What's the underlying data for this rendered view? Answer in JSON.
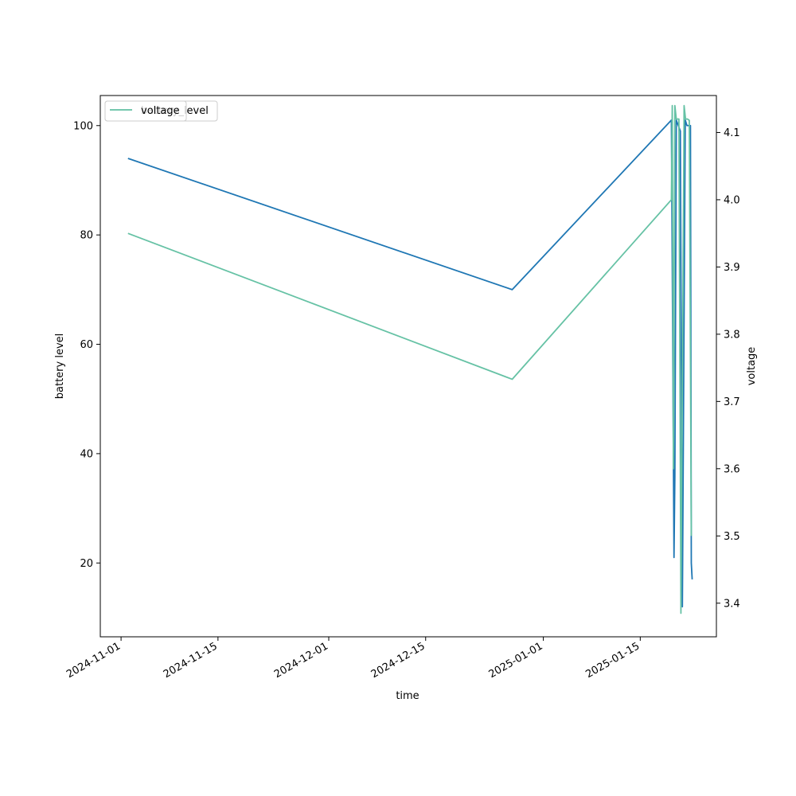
{
  "chart_data": {
    "type": "line",
    "title": "",
    "xlabel": "time",
    "ylabel_left": "battery level",
    "ylabel_right": "voltage",
    "x_ticks": [
      "2024-11-01",
      "2024-11-15",
      "2024-12-01",
      "2024-12-15",
      "2025-01-01",
      "2025-01-15"
    ],
    "y_left_ticks": [
      20,
      40,
      60,
      80,
      100
    ],
    "y_right_ticks": [
      3.4,
      3.5,
      3.6,
      3.7,
      3.8,
      3.9,
      4.0,
      4.1
    ],
    "xlim": [
      "2024-10-29",
      "2025-01-26"
    ],
    "ylim_left": [
      6.5,
      105.5
    ],
    "ylim_right": [
      3.35,
      4.155
    ],
    "grid": false,
    "legend_placement": "upper-left",
    "series": [
      {
        "name": "battery_level",
        "axis": "left",
        "color": "#1f77b4",
        "points": [
          [
            "2024-11-02T00:00",
            94
          ],
          [
            "2024-12-27T12:00",
            70
          ],
          [
            "2025-01-19T12:00",
            101
          ],
          [
            "2025-01-19T21:00",
            21
          ],
          [
            "2025-01-20T00:00",
            36
          ],
          [
            "2025-01-20T05:00",
            101
          ],
          [
            "2025-01-20T12:00",
            100
          ],
          [
            "2025-01-20T19:00",
            99
          ],
          [
            "2025-01-21T02:00",
            12
          ],
          [
            "2025-01-21T12:00",
            101
          ],
          [
            "2025-01-21T18:00",
            100
          ],
          [
            "2025-01-22T06:00",
            100
          ],
          [
            "2025-01-22T09:00",
            20
          ],
          [
            "2025-01-22T12:00",
            17
          ]
        ]
      },
      {
        "name": "voltage",
        "axis": "right",
        "color": "#66c2a5",
        "points": [
          [
            "2024-11-02T00:00",
            3.95
          ],
          [
            "2024-12-27T12:00",
            3.733
          ],
          [
            "2025-01-19T12:00",
            4.0
          ],
          [
            "2025-01-19T15:00",
            4.14
          ],
          [
            "2025-01-19T19:00",
            3.6
          ],
          [
            "2025-01-20T00:00",
            4.14
          ],
          [
            "2025-01-20T05:00",
            4.12
          ],
          [
            "2025-01-20T14:00",
            4.12
          ],
          [
            "2025-01-20T21:00",
            3.385
          ],
          [
            "2025-01-21T08:00",
            4.14
          ],
          [
            "2025-01-21T13:00",
            4.12
          ],
          [
            "2025-01-21T20:00",
            4.12
          ],
          [
            "2025-01-22T02:00",
            4.118
          ],
          [
            "2025-01-22T09:00",
            3.5
          ]
        ]
      }
    ],
    "legend_entries": [
      {
        "label": "battery_level",
        "color": "#1f77b4"
      },
      {
        "label": "voltage",
        "color": "#66c2a5"
      }
    ]
  }
}
